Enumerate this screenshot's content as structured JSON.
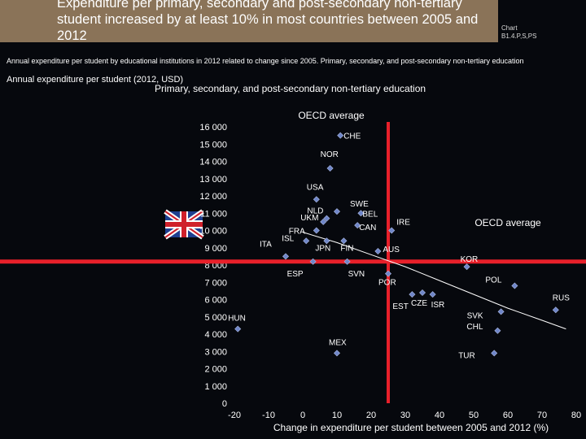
{
  "header": {
    "title": "Expenditure per primary, secondary and post-secondary non-tertiary student increased by at least 10% in most countries between 2005 and 2012",
    "chart_label": "Chart",
    "chart_number": "B1.4.P,S,PS"
  },
  "subtitle": "Annual expenditure per student by educational institutions in 2012 related to change since 2005. Primary, secondary, and post-secondary non-tertiary education",
  "icons": {
    "flag": "uk-flag-icon"
  },
  "colors": {
    "accent_line": "#e8202a",
    "marker": "#6f86c9",
    "trend": "#ffffff",
    "title_bg": "#8a7358"
  },
  "chart_data": {
    "type": "scatter",
    "title": "Primary, secondary, and post-secondary non-tertiary education",
    "ylabel": "Annual expenditure per student  (2012, USD)",
    "xlabel": "Change in expenditure per  student between 2005 and 2012 (%)",
    "xlim": [
      -20,
      80
    ],
    "ylim": [
      0,
      16000
    ],
    "x_ticks": [
      -20,
      -10,
      0,
      10,
      20,
      30,
      40,
      50,
      60,
      70,
      80
    ],
    "x_tick_labels": [
      "-20",
      "-10",
      "0",
      "10",
      "20",
      "30",
      "40",
      "50",
      "60",
      "70",
      "80"
    ],
    "y_ticks": [
      0,
      1000,
      2000,
      3000,
      4000,
      5000,
      6000,
      7000,
      8000,
      9000,
      10000,
      11000,
      12000,
      13000,
      14000,
      15000,
      16000
    ],
    "y_tick_labels": [
      "0",
      "1 000",
      "2 000",
      "3 000",
      "4 000",
      "5 000",
      "6 000",
      "7 000",
      "8 000",
      "9 000",
      "10 000",
      "11 000",
      "12 000",
      "13 000",
      "14 000",
      "15 000",
      "16 000"
    ],
    "oecd_average": {
      "x": 25,
      "y": 8200,
      "label_vertical": "OECD average",
      "label_horizontal": "OECD average"
    },
    "trend_line": [
      {
        "x": 0,
        "y": 9900
      },
      {
        "x": 10,
        "y": 9300
      },
      {
        "x": 20,
        "y": 8600
      },
      {
        "x": 30,
        "y": 7900
      },
      {
        "x": 40,
        "y": 7100
      },
      {
        "x": 50,
        "y": 6300
      },
      {
        "x": 60,
        "y": 5500
      },
      {
        "x": 70,
        "y": 4800
      },
      {
        "x": 77,
        "y": 4300
      }
    ],
    "points": [
      {
        "label": "CHE",
        "x": 11,
        "y": 15500
      },
      {
        "label": "NOR",
        "x": 8,
        "y": 13600
      },
      {
        "label": "USA",
        "x": 4,
        "y": 11800
      },
      {
        "label": "SWE",
        "x": 10,
        "y": 11100
      },
      {
        "label": "BEL",
        "x": 17,
        "y": 11000
      },
      {
        "label": "NLD",
        "x": 7,
        "y": 10700
      },
      {
        "label": "UKM",
        "x": 6,
        "y": 10500
      },
      {
        "label": "CAN",
        "x": 16,
        "y": 10300
      },
      {
        "label": "IRE",
        "x": 26,
        "y": 10000
      },
      {
        "label": "FRA",
        "x": 4,
        "y": 10000
      },
      {
        "label": "ISL",
        "x": 1,
        "y": 9400
      },
      {
        "label": "ITA",
        "x": -5,
        "y": 8500
      },
      {
        "label": "JPN",
        "x": 7,
        "y": 9400
      },
      {
        "label": "FIN",
        "x": 12,
        "y": 9400
      },
      {
        "label": "AUS",
        "x": 22,
        "y": 8800
      },
      {
        "label": "KOR",
        "x": 48,
        "y": 7900
      },
      {
        "label": "ESP",
        "x": 3,
        "y": 8200
      },
      {
        "label": "SVN",
        "x": 13,
        "y": 8200
      },
      {
        "label": "POL",
        "x": 62,
        "y": 6800
      },
      {
        "label": "POR",
        "x": 25,
        "y": 7500
      },
      {
        "label": "EST",
        "x": 32,
        "y": 6300
      },
      {
        "label": "CZE",
        "x": 35,
        "y": 6400
      },
      {
        "label": "ISR",
        "x": 38,
        "y": 6300
      },
      {
        "label": "RUS",
        "x": 74,
        "y": 5400
      },
      {
        "label": "SVK",
        "x": 58,
        "y": 5300
      },
      {
        "label": "HUN",
        "x": -19,
        "y": 4300
      },
      {
        "label": "CHL",
        "x": 57,
        "y": 4200
      },
      {
        "label": "MEX",
        "x": 10,
        "y": 2900
      },
      {
        "label": "TUR",
        "x": 56,
        "y": 2900
      }
    ]
  }
}
